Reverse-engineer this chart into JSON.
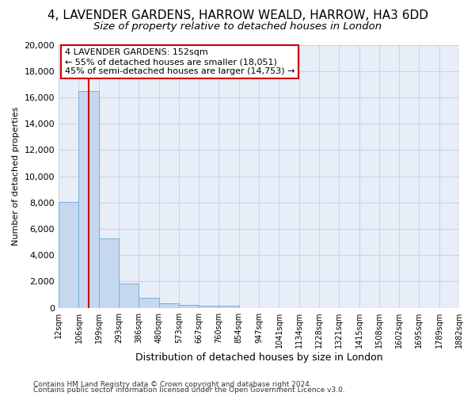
{
  "title": "4, LAVENDER GARDENS, HARROW WEALD, HARROW, HA3 6DD",
  "subtitle": "Size of property relative to detached houses in London",
  "xlabel": "Distribution of detached houses by size in London",
  "ylabel": "Number of detached properties",
  "footnote1": "Contains HM Land Registry data © Crown copyright and database right 2024.",
  "footnote2": "Contains public sector information licensed under the Open Government Licence v3.0.",
  "bar_edges": [
    12,
    106,
    199,
    293,
    386,
    480,
    573,
    667,
    760,
    854,
    947,
    1041,
    1134,
    1228,
    1321,
    1415,
    1508,
    1602,
    1695,
    1789,
    1882
  ],
  "bar_heights": [
    8050,
    16500,
    5300,
    1820,
    730,
    355,
    205,
    185,
    130,
    0,
    0,
    0,
    0,
    0,
    0,
    0,
    0,
    0,
    0,
    0
  ],
  "bar_color": "#c5d8f0",
  "bar_edgecolor": "#7bafd4",
  "grid_color": "#c8d4e8",
  "bg_color": "#e8eef8",
  "vline_x": 152,
  "vline_color": "#cc0000",
  "annotation_text": "4 LAVENDER GARDENS: 152sqm\n← 55% of detached houses are smaller (18,051)\n45% of semi-detached houses are larger (14,753) →",
  "annotation_box_color": "#cc0000",
  "ylim": [
    0,
    20000
  ],
  "yticks": [
    0,
    2000,
    4000,
    6000,
    8000,
    10000,
    12000,
    14000,
    16000,
    18000,
    20000
  ],
  "tick_labels": [
    "12sqm",
    "106sqm",
    "199sqm",
    "293sqm",
    "386sqm",
    "480sqm",
    "573sqm",
    "667sqm",
    "760sqm",
    "854sqm",
    "947sqm",
    "1041sqm",
    "1134sqm",
    "1228sqm",
    "1321sqm",
    "1415sqm",
    "1508sqm",
    "1602sqm",
    "1695sqm",
    "1789sqm",
    "1882sqm"
  ],
  "title_fontsize": 11,
  "subtitle_fontsize": 9.5,
  "xlabel_fontsize": 9,
  "ylabel_fontsize": 8,
  "ytick_fontsize": 8,
  "xtick_fontsize": 7,
  "annot_fontsize": 8,
  "footnote_fontsize": 6.5
}
